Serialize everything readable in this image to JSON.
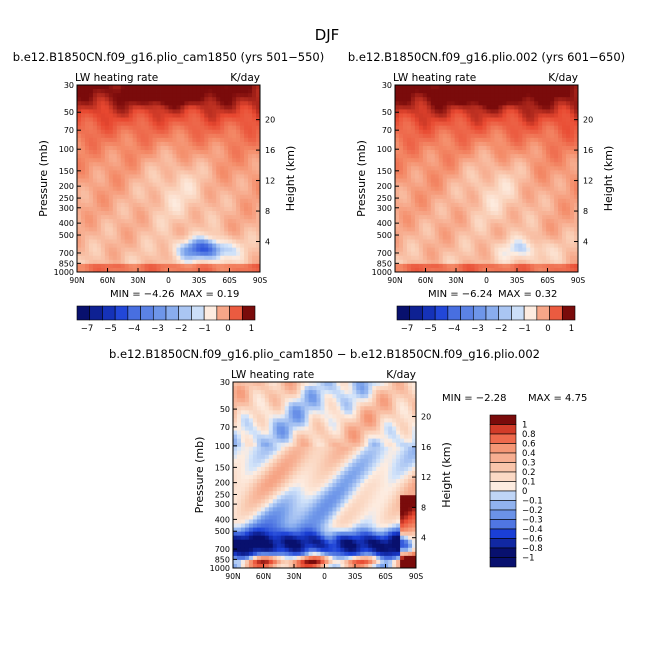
{
  "figure_title": "DJF",
  "colors": {
    "neg_deep": "#08106e",
    "neg_mid": "#1a3fd6",
    "neg_light": "#a9c8f0",
    "neutral": "#fdeadf",
    "pos_light": "#f9c3a6",
    "pos_mid": "#f2806a",
    "pos_deep": "#7a0b0b"
  },
  "chart_data": [
    {
      "type": "heatmap",
      "id": "panel1",
      "title": "b.e12.B1850CN.f09_g16.plio_cam1850 (yrs 501−550)",
      "left_label": "LW heating rate",
      "right_label": "K/day",
      "ylabel": "Pressure (mb)",
      "y2label": "Height (km)",
      "x_ticks": [
        "90N",
        "60N",
        "30N",
        "0",
        "30S",
        "60S",
        "90S"
      ],
      "p_ticks": [
        "30",
        "50",
        "70",
        "100",
        "150",
        "200",
        "250",
        "300",
        "400",
        "500",
        "700",
        "850",
        "1000"
      ],
      "z_ticks": [
        "20",
        "16",
        "12",
        "8",
        "4"
      ],
      "min_text": "MIN =   −4.26",
      "max_text": "MAX =   0.19",
      "min": -4.26,
      "max": 0.19,
      "colorbar_labels": [
        "−7",
        "−5",
        "−4",
        "−3",
        "−2",
        "−1",
        "0",
        "1"
      ],
      "colorbar_levels": [
        -7,
        -6,
        -5,
        -4,
        -3,
        -2.5,
        -2,
        -1.5,
        -1,
        -0.5,
        0,
        0.5,
        1,
        1.5
      ]
    },
    {
      "type": "heatmap",
      "id": "panel2",
      "title": "b.e12.B1850CN.f09_g16.plio.002 (yrs 601−650)",
      "left_label": "LW heating rate",
      "right_label": "K/day",
      "ylabel": "Pressure (mb)",
      "y2label": "Height (km)",
      "x_ticks": [
        "90N",
        "60N",
        "30N",
        "0",
        "30S",
        "60S",
        "90S"
      ],
      "p_ticks": [
        "30",
        "50",
        "70",
        "100",
        "150",
        "200",
        "250",
        "300",
        "400",
        "500",
        "700",
        "850",
        "1000"
      ],
      "z_ticks": [
        "20",
        "16",
        "12",
        "8",
        "4"
      ],
      "min_text": "MIN =   −6.24",
      "max_text": "MAX =   0.32",
      "min": -6.24,
      "max": 0.32,
      "colorbar_labels": [
        "−7",
        "−5",
        "−4",
        "−3",
        "−2",
        "−1",
        "0",
        "1"
      ],
      "colorbar_levels": [
        -7,
        -6,
        -5,
        -4,
        -3,
        -2.5,
        -2,
        -1.5,
        -1,
        -0.5,
        0,
        0.5,
        1,
        1.5
      ]
    },
    {
      "type": "heatmap",
      "id": "panel3",
      "title": "b.e12.B1850CN.f09_g16.plio_cam1850 − b.e12.B1850CN.f09_g16.plio.002",
      "left_label": "LW heating rate",
      "right_label": "K/day",
      "ylabel": "Pressure (mb)",
      "y2label": "Height (km)",
      "x_ticks": [
        "90N",
        "60N",
        "30N",
        "0",
        "30S",
        "60S",
        "90S"
      ],
      "p_ticks": [
        "30",
        "50",
        "70",
        "100",
        "150",
        "200",
        "250",
        "300",
        "400",
        "500",
        "700",
        "850",
        "1000"
      ],
      "z_ticks": [
        "20",
        "16",
        "12",
        "8",
        "4"
      ],
      "min_text": "MIN =   −2.28",
      "max_text": "MAX =    4.75",
      "min": -2.28,
      "max": 4.75,
      "colorbar_labels": [
        "1",
        "0.8",
        "0.6",
        "0.4",
        "0.3",
        "0.2",
        "0.1",
        "0",
        "−0.1",
        "−0.2",
        "−0.3",
        "−0.4",
        "−0.6",
        "−0.8",
        "−1"
      ],
      "colorbar_levels": [
        1,
        0.8,
        0.6,
        0.4,
        0.3,
        0.2,
        0.1,
        0,
        -0.1,
        -0.2,
        -0.3,
        -0.4,
        -0.6,
        -0.8,
        -1
      ]
    }
  ]
}
